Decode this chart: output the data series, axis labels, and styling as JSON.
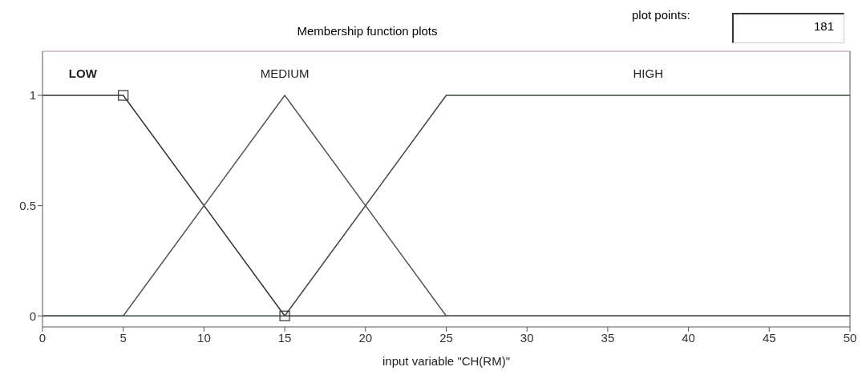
{
  "chart_data": {
    "type": "line",
    "title": "Membership function plots",
    "xlabel": "input variable \"CH(RM)\"",
    "annotations": [
      "plot points:",
      "181"
    ],
    "xlim": [
      0,
      50
    ],
    "xticks": [
      0,
      5,
      10,
      15,
      20,
      25,
      30,
      35,
      40,
      45,
      50
    ],
    "ylim": [
      -0.05,
      1.2
    ],
    "yticks": [
      0,
      0.5,
      1
    ],
    "line_style": "solid",
    "series": [
      {
        "name": "LOW",
        "color": "#333333",
        "marker": "square",
        "x": [
          0,
          5,
          15,
          50
        ],
        "values": [
          1,
          1,
          0,
          0
        ]
      },
      {
        "name": "MEDIUM",
        "color": "#555555",
        "marker": "none",
        "x": [
          0,
          5,
          15,
          25,
          50
        ],
        "values": [
          0,
          0,
          1,
          0,
          0
        ]
      },
      {
        "name": "HIGH",
        "color": "#3c4a3c",
        "marker": "none",
        "x": [
          0,
          15,
          25,
          50
        ],
        "values": [
          0,
          0,
          1,
          1
        ]
      }
    ]
  }
}
